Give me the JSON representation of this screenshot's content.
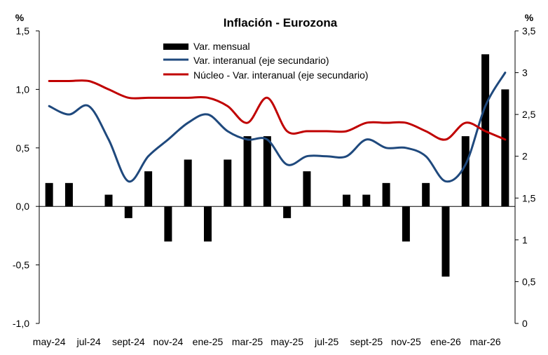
{
  "chart_data": {
    "type": "bar+line",
    "title": "Inflación - Eurozona",
    "ylabel_left_unit": "%",
    "ylabel_right_unit": "%",
    "ylim_left": [
      -1.0,
      1.5
    ],
    "ylim_right": [
      0,
      3.5
    ],
    "y_ticks_left": [
      "-1,0",
      "-0,5",
      "0,0",
      "0,5",
      "1,0",
      "1,5"
    ],
    "y_ticks_right": [
      "0",
      "0,5",
      "1",
      "1,5",
      "2",
      "2,5",
      "3",
      "3,5"
    ],
    "x_tick_labels": [
      "may-24",
      "jul-24",
      "sept-24",
      "nov-24",
      "ene-25",
      "mar-25",
      "may-25",
      "jul-25",
      "sept-25",
      "nov-25",
      "ene-26",
      "mar-26"
    ],
    "categories": [
      "may-24",
      "jun-24",
      "jul-24",
      "ago-24",
      "sept-24",
      "oct-24",
      "nov-24",
      "dic-24",
      "ene-25",
      "feb-25",
      "mar-25",
      "abr-25",
      "may-25",
      "jun-25",
      "jul-25",
      "ago-25",
      "sept-25",
      "oct-25",
      "nov-25",
      "dic-25",
      "ene-26",
      "feb-26",
      "mar-26",
      "abr-26"
    ],
    "legend_position": "top-center",
    "grid": false,
    "series": [
      {
        "name": "Var. mensual",
        "kind": "bar",
        "axis": "left",
        "color": "#000000",
        "values": [
          0.2,
          0.2,
          0.0,
          0.1,
          -0.1,
          0.3,
          -0.3,
          0.4,
          -0.3,
          0.4,
          0.6,
          0.6,
          -0.1,
          0.3,
          0.0,
          0.1,
          0.1,
          0.2,
          -0.3,
          0.2,
          -0.6,
          0.6,
          1.3,
          1.0
        ]
      },
      {
        "name": "Var. interanual (eje secundario)",
        "kind": "line",
        "axis": "right",
        "color": "#1F497D",
        "values": [
          2.6,
          2.5,
          2.6,
          2.2,
          1.7,
          2.0,
          2.2,
          2.4,
          2.5,
          2.3,
          2.2,
          2.2,
          1.9,
          2.0,
          2.0,
          2.0,
          2.2,
          2.1,
          2.1,
          2.0,
          1.7,
          1.9,
          2.6,
          3.0
        ]
      },
      {
        "name": "Núcleo - Var. interanual (eje secundario)",
        "kind": "line",
        "axis": "right",
        "color": "#C00000",
        "values": [
          2.9,
          2.9,
          2.9,
          2.8,
          2.7,
          2.7,
          2.7,
          2.7,
          2.7,
          2.6,
          2.4,
          2.7,
          2.3,
          2.3,
          2.3,
          2.3,
          2.4,
          2.4,
          2.4,
          2.3,
          2.2,
          2.4,
          2.3,
          2.2
        ]
      }
    ]
  }
}
